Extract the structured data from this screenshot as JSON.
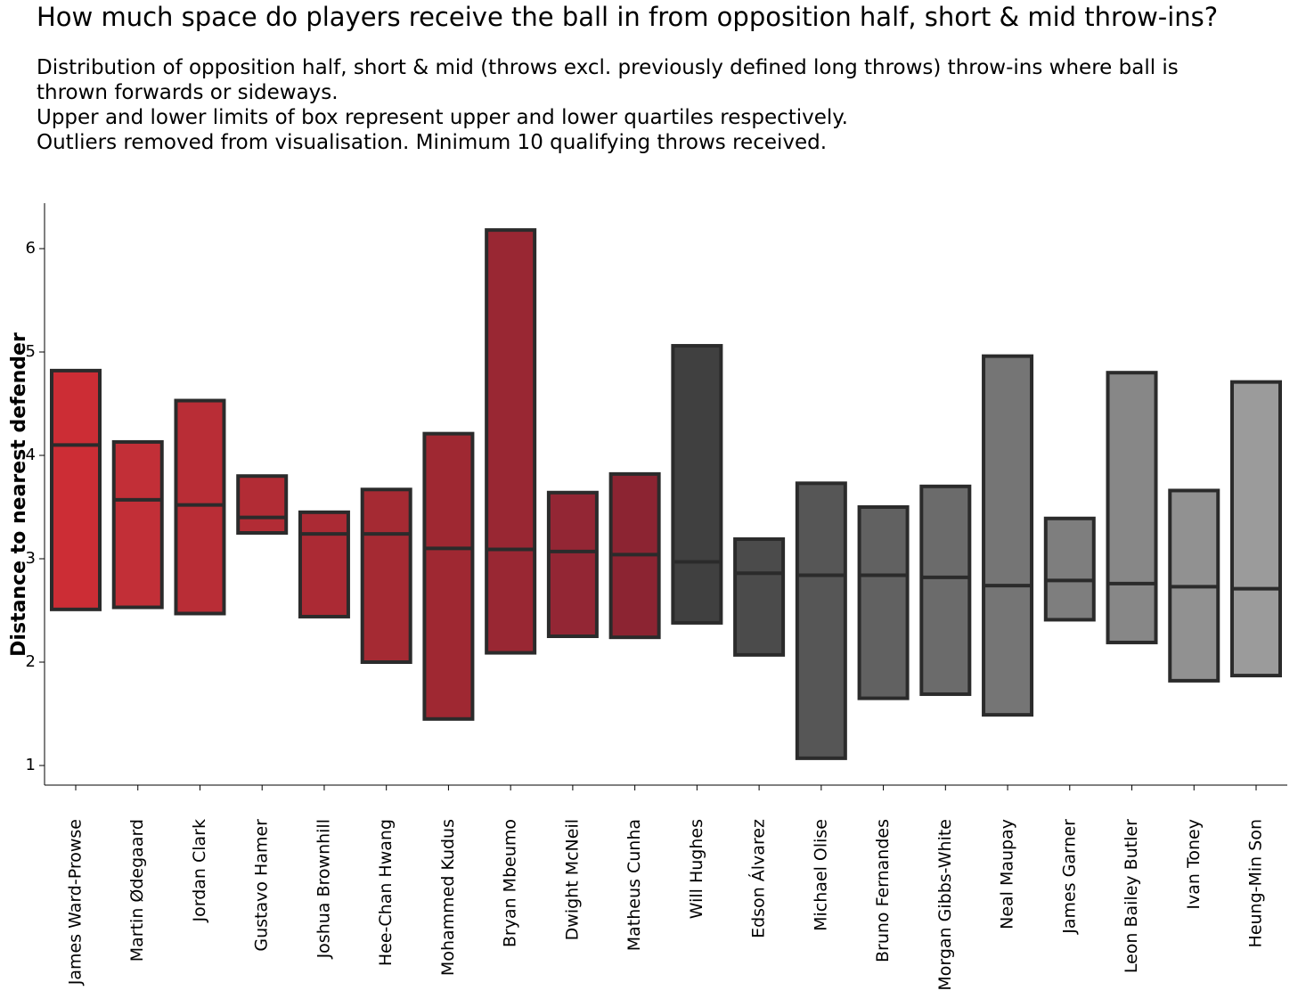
{
  "chart_data": {
    "type": "box",
    "title": "How much space do players receive the ball in from opposition half, short & mid throw-ins?",
    "subtitle_lines": [
      "Distribution of opposition half, short & mid (throws excl. previously defined long throws) throw-ins where ball is",
      "thrown forwards or sideways.",
      "Upper and lower limits of box represent upper and lower quartiles respectively.",
      "Outliers removed from visualisation. Minimum 10 qualifying throws received."
    ],
    "ylabel": "Distance to nearest defender",
    "xlabel": "",
    "ylim": [
      0.8,
      6.45
    ],
    "yticks": [
      1,
      2,
      3,
      4,
      5,
      6
    ],
    "grid": false,
    "boxes": [
      {
        "name": "James Ward-Prowse",
        "q1": 2.51,
        "median": 4.1,
        "q3": 4.82,
        "color": "#cc2d35"
      },
      {
        "name": "Martin Ødegaard",
        "q1": 2.53,
        "median": 3.57,
        "q3": 4.13,
        "color": "#c22f37"
      },
      {
        "name": "Jordan Clark",
        "q1": 2.47,
        "median": 3.52,
        "q3": 4.53,
        "color": "#b92d36"
      },
      {
        "name": "Gustavo Hamer",
        "q1": 3.25,
        "median": 3.4,
        "q3": 3.8,
        "color": "#b22c35"
      },
      {
        "name": "Joshua Brownhill",
        "q1": 2.44,
        "median": 3.24,
        "q3": 3.45,
        "color": "#ab2a34"
      },
      {
        "name": "Hee-Chan Hwang",
        "q1": 2.0,
        "median": 3.24,
        "q3": 3.67,
        "color": "#a52a33"
      },
      {
        "name": "Mohammed Kudus",
        "q1": 1.45,
        "median": 3.1,
        "q3": 4.21,
        "color": "#9f2832"
      },
      {
        "name": "Bryan Mbeumo",
        "q1": 2.09,
        "median": 3.09,
        "q3": 6.18,
        "color": "#992733"
      },
      {
        "name": "Dwight McNeil",
        "q1": 2.25,
        "median": 3.07,
        "q3": 3.64,
        "color": "#932634"
      },
      {
        "name": "Matheus Cunha",
        "q1": 2.24,
        "median": 3.04,
        "q3": 3.82,
        "color": "#8c2432"
      },
      {
        "name": "Will Hughes",
        "q1": 2.38,
        "median": 2.97,
        "q3": 5.06,
        "color": "#404040"
      },
      {
        "name": "Edson Álvarez",
        "q1": 2.07,
        "median": 2.86,
        "q3": 3.19,
        "color": "#4b4b4b"
      },
      {
        "name": "Michael Olise",
        "q1": 1.07,
        "median": 2.84,
        "q3": 3.73,
        "color": "#565656"
      },
      {
        "name": "Bruno Fernandes",
        "q1": 1.65,
        "median": 2.84,
        "q3": 3.5,
        "color": "#616161"
      },
      {
        "name": "Morgan Gibbs-White",
        "q1": 1.69,
        "median": 2.82,
        "q3": 3.7,
        "color": "#6b6b6b"
      },
      {
        "name": "Neal Maupay",
        "q1": 1.49,
        "median": 2.74,
        "q3": 4.96,
        "color": "#757575"
      },
      {
        "name": "James Garner",
        "q1": 2.41,
        "median": 2.79,
        "q3": 3.39,
        "color": "#7e7e7e"
      },
      {
        "name": "Leon Bailey Butler",
        "q1": 2.19,
        "median": 2.76,
        "q3": 4.8,
        "color": "#878787"
      },
      {
        "name": "Ivan Toney",
        "q1": 1.82,
        "median": 2.73,
        "q3": 3.66,
        "color": "#919191"
      },
      {
        "name": "Heung-Min Son",
        "q1": 1.87,
        "median": 2.71,
        "q3": 4.71,
        "color": "#9b9b9b"
      }
    ],
    "box_edge_color": "#2b2b2b"
  }
}
